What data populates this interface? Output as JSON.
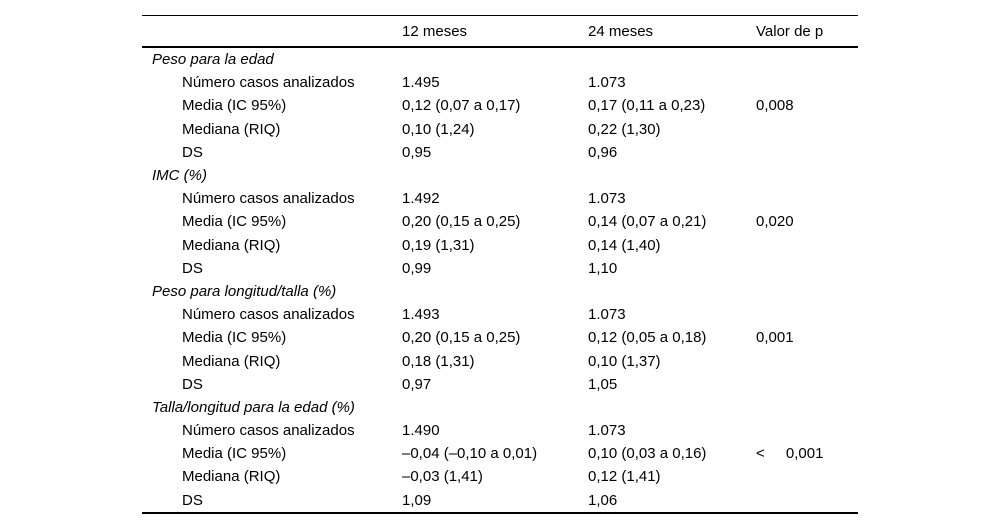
{
  "table": {
    "headers": [
      "",
      "12 meses",
      "24 meses",
      "Valor de p"
    ],
    "sections": [
      {
        "title": "Peso para la edad",
        "rows": [
          {
            "label": "Número casos analizados",
            "m12": "1.495",
            "m24": "1.073",
            "p": ""
          },
          {
            "label": "Media (IC 95%)",
            "m12": "0,12 (0,07 a 0,17)",
            "m24": "0,17 (0,11 a 0,23)",
            "p": "0,008"
          },
          {
            "label": "Mediana (RIQ)",
            "m12": "0,10 (1,24)",
            "m24": "0,22 (1,30)",
            "p": ""
          },
          {
            "label": "DS",
            "m12": "0,95",
            "m24": "0,96",
            "p": ""
          }
        ]
      },
      {
        "title": "IMC (%)",
        "rows": [
          {
            "label": "Número casos analizados",
            "m12": "1.492",
            "m24": "1.073",
            "p": ""
          },
          {
            "label": "Media (IC 95%)",
            "m12": "0,20 (0,15 a 0,25)",
            "m24": "0,14 (0,07 a 0,21)",
            "p": "0,020"
          },
          {
            "label": "Mediana (RIQ)",
            "m12": "0,19 (1,31)",
            "m24": "0,14 (1,40)",
            "p": ""
          },
          {
            "label": "DS",
            "m12": "0,99",
            "m24": "1,10",
            "p": ""
          }
        ]
      },
      {
        "title": "Peso para longitud/talla (%)",
        "rows": [
          {
            "label": "Número casos analizados",
            "m12": "1.493",
            "m24": "1.073",
            "p": ""
          },
          {
            "label": "Media (IC 95%)",
            "m12": "0,20 (0,15 a 0,25)",
            "m24": "0,12 (0,05 a 0,18)",
            "p": "0,001"
          },
          {
            "label": "Mediana (RIQ)",
            "m12": "0,18 (1,31)",
            "m24": "0,10 (1,37)",
            "p": ""
          },
          {
            "label": "DS",
            "m12": "0,97",
            "m24": "1,05",
            "p": ""
          }
        ]
      },
      {
        "title": "Talla/longitud para la edad (%)",
        "rows": [
          {
            "label": "Número casos analizados",
            "m12": "1.490",
            "m24": "1.073",
            "p": ""
          },
          {
            "label": "Media (IC 95%)",
            "m12": "–0,04 (–0,10 a 0,01)",
            "m24": "0,10 (0,03 a 0,16)",
            "p": "< 0,001"
          },
          {
            "label": "Mediana (RIQ)",
            "m12": "–0,03 (1,41)",
            "m24": "0,12 (1,41)",
            "p": ""
          },
          {
            "label": "DS",
            "m12": "1,09",
            "m24": "1,06",
            "p": ""
          }
        ]
      }
    ]
  }
}
